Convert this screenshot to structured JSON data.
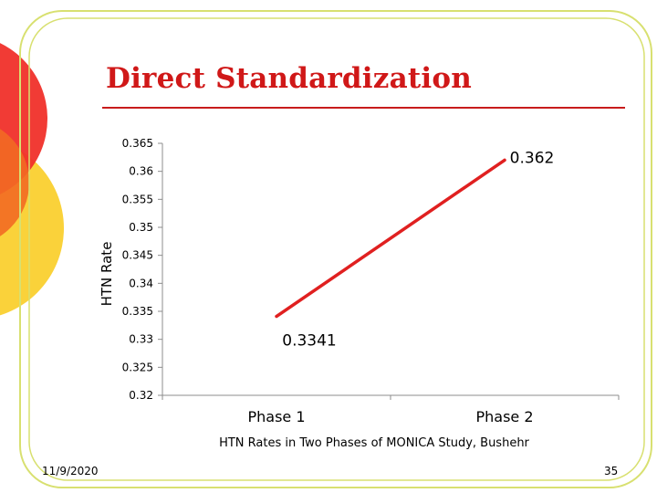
{
  "slide": {
    "title": "Direct Standardization",
    "date": "11/9/2020",
    "page_number": "35",
    "accent_color": "#d01818",
    "frame_color": "#d8e070"
  },
  "chart_data": {
    "type": "line",
    "categories": [
      "Phase 1",
      "Phase 2"
    ],
    "series": [
      {
        "values": [
          0.3341,
          0.362
        ],
        "color": "#e02020",
        "labels": [
          "0.3341",
          "0.362"
        ]
      }
    ],
    "xlabel": "HTN Rates in Two Phases of MONICA Study, Bushehr",
    "ylabel": "HTN Rate",
    "ylim": [
      0.32,
      0.365
    ],
    "yticks": [
      0.32,
      0.325,
      0.33,
      0.335,
      0.34,
      0.345,
      0.35,
      0.355,
      0.36,
      0.365
    ],
    "ytick_labels": [
      "0.32",
      "0.325",
      "0.33",
      "0.335",
      "0.34",
      "0.345",
      "0.35",
      "0.355",
      "0.36",
      "0.365"
    ],
    "grid": false,
    "legend": "none"
  }
}
